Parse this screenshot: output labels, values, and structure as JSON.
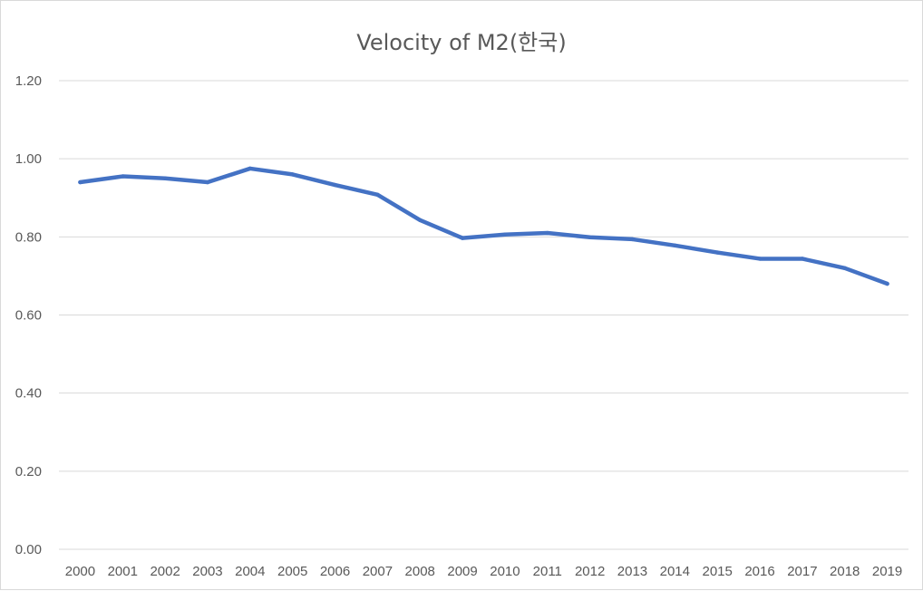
{
  "chart_data": {
    "type": "line",
    "title": "Velocity of M2(한국)",
    "xlabel": "",
    "ylabel": "",
    "ylim": [
      0,
      1.2
    ],
    "yticks": [
      "0.00",
      "0.20",
      "0.40",
      "0.60",
      "0.80",
      "1.00",
      "1.20"
    ],
    "grid": true,
    "categories": [
      "2000",
      "2001",
      "2002",
      "2003",
      "2004",
      "2005",
      "2006",
      "2007",
      "2008",
      "2009",
      "2010",
      "2011",
      "2012",
      "2013",
      "2014",
      "2015",
      "2016",
      "2017",
      "2018",
      "2019"
    ],
    "series": [
      {
        "name": "Velocity of M2",
        "color": "#4472c4",
        "values": [
          0.94,
          0.955,
          0.95,
          0.94,
          0.975,
          0.96,
          0.933,
          0.908,
          0.843,
          0.797,
          0.806,
          0.81,
          0.799,
          0.794,
          0.778,
          0.76,
          0.744,
          0.744,
          0.72,
          0.68
        ]
      }
    ]
  }
}
